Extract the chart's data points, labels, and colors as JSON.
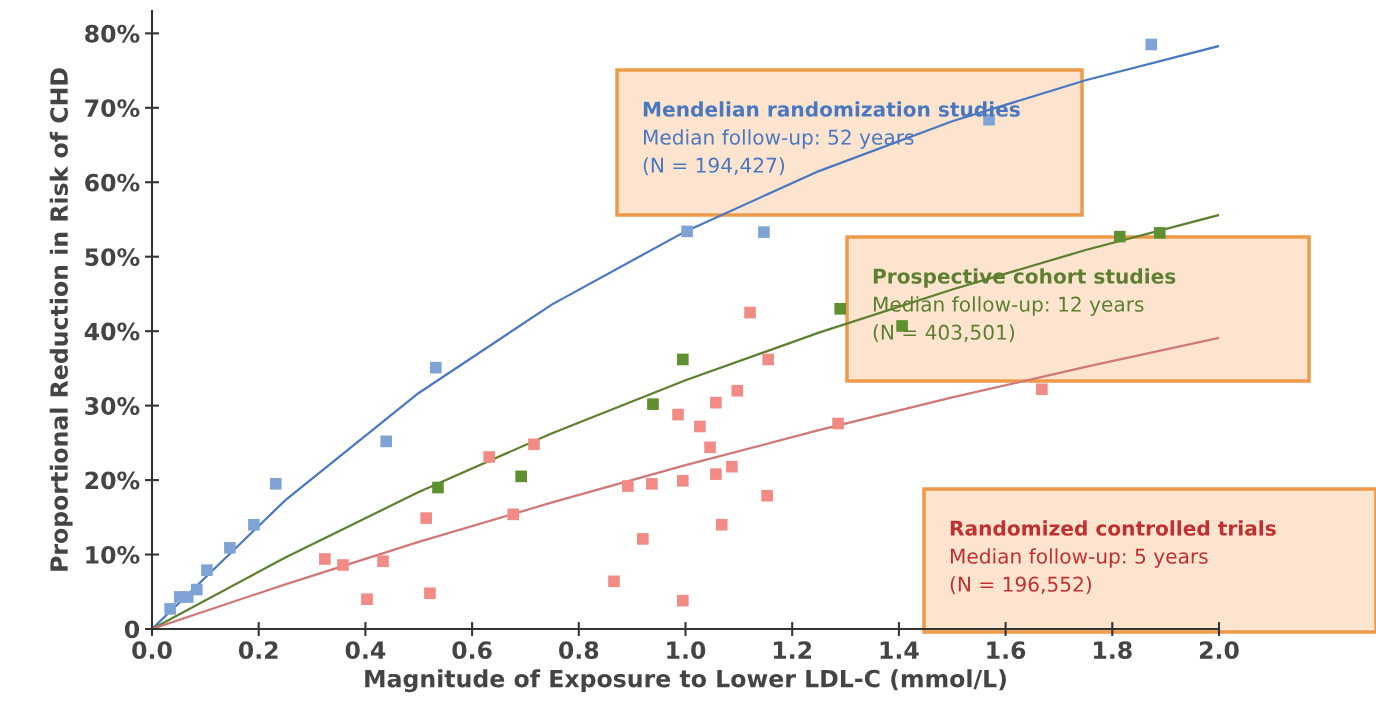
{
  "chart_data": {
    "type": "scatter",
    "xlabel": "Magnitude of Exposure to Lower LDL-C (mmol/L)",
    "ylabel": "Proportional Reduction in Risk of CHD",
    "xlim": [
      0,
      2.0
    ],
    "ylim": [
      0,
      83
    ],
    "xticks": [
      {
        "value": 0,
        "label": "0.0"
      },
      {
        "value": 0.2,
        "label": "0.2"
      },
      {
        "value": 0.4,
        "label": "0.4"
      },
      {
        "value": 0.6,
        "label": "0.6"
      },
      {
        "value": 0.8,
        "label": "0.8"
      },
      {
        "value": 1.0,
        "label": "1.0"
      },
      {
        "value": 1.2,
        "label": "1.2"
      },
      {
        "value": 1.4,
        "label": "1.4"
      },
      {
        "value": 1.6,
        "label": "1.6"
      },
      {
        "value": 1.8,
        "label": "1.8"
      },
      {
        "value": 2.0,
        "label": "2.0"
      }
    ],
    "yticks": [
      0,
      {
        "value": 10,
        "label": "10%"
      },
      {
        "value": 20,
        "label": "20%"
      },
      {
        "value": 30,
        "label": "30%"
      },
      {
        "value": 40,
        "label": "40%"
      },
      {
        "value": 50,
        "label": "50%"
      },
      {
        "value": 60,
        "label": "60%"
      },
      {
        "value": 70,
        "label": "70%"
      },
      {
        "value": 80,
        "label": "80%"
      }
    ],
    "marker": "square",
    "grid": false,
    "legend": false,
    "series": [
      {
        "color": "#7fa3d4",
        "x": [
          0.034,
          0.052,
          0.067,
          0.084,
          0.103,
          0.146,
          0.191,
          0.232,
          0.439,
          0.532,
          1.003,
          1.147,
          1.569,
          1.873
        ],
        "values": [
          2.7,
          4.3,
          4.3,
          5.3,
          7.9,
          10.9,
          14.0,
          19.5,
          25.2,
          35.1,
          53.4,
          53.3,
          68.4,
          78.5
        ]
      },
      {
        "type": "line",
        "marker": "none",
        "color": "#4a78c0",
        "x": [
          0,
          0.25,
          0.5,
          0.75,
          1.0,
          1.25,
          1.5,
          1.75,
          2.0
        ],
        "values": [
          0,
          17.3,
          31.7,
          43.6,
          53.4,
          61.5,
          68.2,
          73.7,
          78.3
        ]
      },
      {
        "color": "#5e8f30",
        "x": [
          0.536,
          0.692,
          0.939,
          0.995,
          1.29,
          1.406,
          1.814,
          1.889
        ],
        "values": [
          19.0,
          20.5,
          30.2,
          36.2,
          43.0,
          40.7,
          52.7,
          53.2
        ]
      },
      {
        "type": "line",
        "marker": "none",
        "color": "#5e7f30",
        "x": [
          0,
          0.25,
          0.5,
          0.75,
          1.0,
          1.25,
          1.5,
          1.75,
          2.0
        ],
        "values": [
          0,
          9.6,
          18.4,
          26.3,
          33.4,
          39.8,
          45.6,
          50.9,
          55.6
        ]
      },
      {
        "color": "#f28b86",
        "x": [
          0.324,
          0.358,
          0.403,
          0.433,
          0.521,
          0.514,
          0.632,
          0.716,
          0.677,
          0.866,
          0.892,
          0.92,
          0.937,
          0.986,
          0.995,
          0.995,
          1.027,
          1.046,
          1.057,
          1.057,
          1.068,
          1.087,
          1.097,
          1.121,
          1.155,
          1.153,
          1.286,
          1.668
        ],
        "values": [
          9.4,
          8.6,
          4.0,
          9.1,
          4.8,
          14.9,
          23.1,
          24.8,
          15.4,
          6.4,
          19.2,
          12.1,
          19.5,
          28.8,
          19.9,
          3.8,
          27.2,
          24.4,
          30.4,
          20.8,
          14.0,
          21.8,
          32.0,
          42.5,
          36.2,
          17.9,
          27.6,
          32.2
        ]
      },
      {
        "type": "line",
        "marker": "none",
        "color": "#d07878",
        "x": [
          0,
          0.25,
          0.5,
          0.75,
          1.0,
          1.25,
          1.5,
          1.75,
          2.0
        ],
        "values": [
          0,
          6.0,
          11.7,
          17.0,
          22.0,
          26.7,
          31.1,
          35.2,
          39.1
        ]
      }
    ],
    "annotations": [
      "Mendelian randomization studies\nMedian follow-up: 52 years\n(N = 194,427)",
      "Prospective cohort studies\nMedian follow-up: 12 years\n(N = 403,501)",
      "Randomized controlled trials\nMedian follow-up: 5 years\n(N = 196,552)"
    ]
  }
}
